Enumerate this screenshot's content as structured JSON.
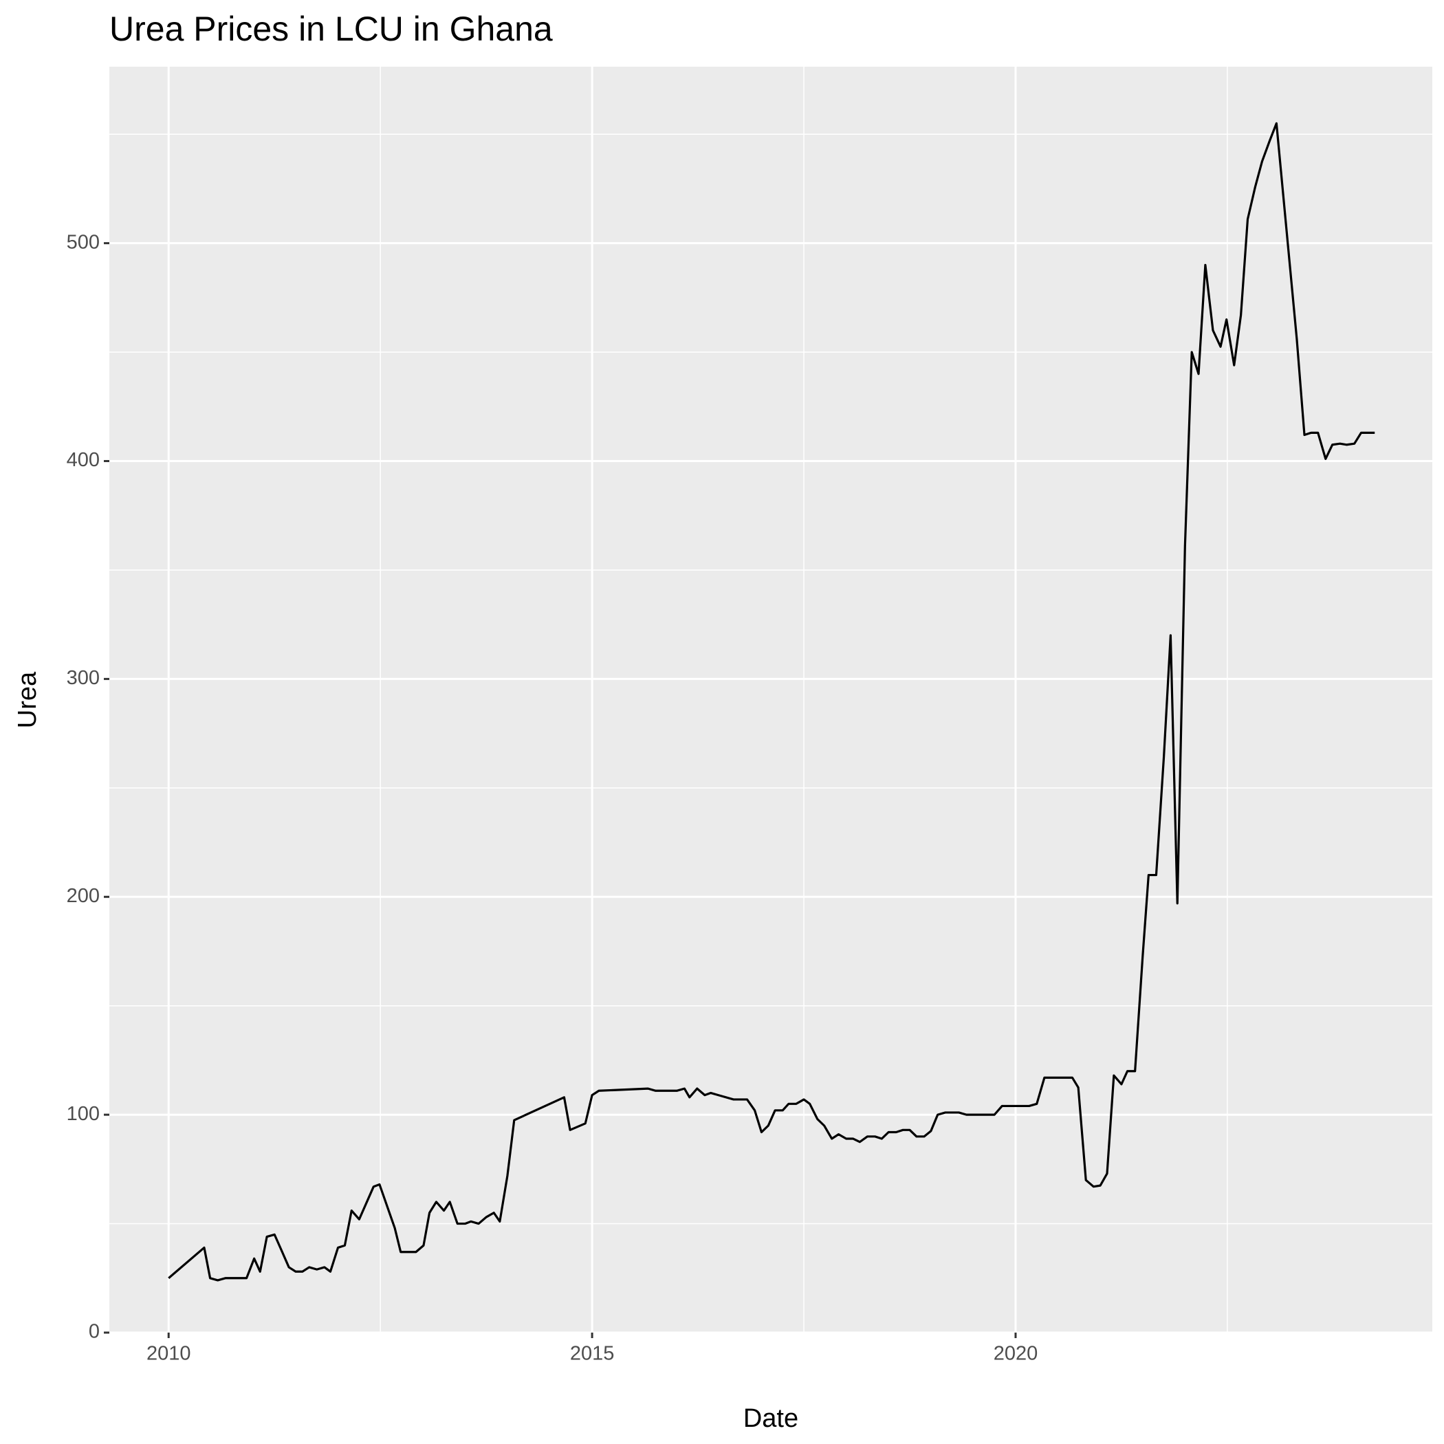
{
  "chart_data": {
    "type": "line",
    "title": "Urea Prices in LCU in Ghana",
    "x_label": "Date",
    "y_label": "Urea",
    "x": [
      2010.0,
      2010.42,
      2010.49,
      2010.58,
      2010.67,
      2010.92,
      2011.01,
      2011.08,
      2011.16,
      2011.25,
      2011.33,
      2011.42,
      2011.5,
      2011.58,
      2011.66,
      2011.75,
      2011.84,
      2011.91,
      2012.0,
      2012.08,
      2012.16,
      2012.25,
      2012.42,
      2012.49,
      2012.67,
      2012.74,
      2012.92,
      2013.01,
      2013.08,
      2013.16,
      2013.25,
      2013.32,
      2013.41,
      2013.5,
      2013.57,
      2013.66,
      2013.75,
      2013.84,
      2013.91,
      2014.0,
      2014.08,
      2014.67,
      2014.74,
      2014.92,
      2015.0,
      2015.08,
      2015.66,
      2015.75,
      2015.83,
      2015.91,
      2016.0,
      2016.09,
      2016.15,
      2016.24,
      2016.33,
      2016.4,
      2016.49,
      2016.67,
      2016.83,
      2016.92,
      2017.0,
      2017.08,
      2017.16,
      2017.25,
      2017.32,
      2017.41,
      2017.5,
      2017.57,
      2017.66,
      2017.74,
      2017.83,
      2017.91,
      2018.0,
      2018.08,
      2018.16,
      2018.25,
      2018.34,
      2018.42,
      2018.5,
      2018.59,
      2018.67,
      2018.75,
      2018.83,
      2018.92,
      2019.0,
      2019.08,
      2019.17,
      2019.33,
      2019.42,
      2019.75,
      2019.84,
      2020.0,
      2020.16,
      2020.25,
      2020.34,
      2020.67,
      2020.74,
      2020.83,
      2020.92,
      2021.0,
      2021.08,
      2021.16,
      2021.25,
      2021.32,
      2021.41,
      2021.5,
      2021.57,
      2021.66,
      2021.75,
      2021.83,
      2021.91,
      2022.0,
      2022.08,
      2022.16,
      2022.24,
      2022.33,
      2022.42,
      2022.49,
      2022.58,
      2022.66,
      2022.74,
      2022.83,
      2022.91,
      2023.0,
      2023.08,
      2023.32,
      2023.41,
      2023.49,
      2023.57,
      2023.66,
      2023.74,
      2023.83,
      2023.91,
      2024.0,
      2024.08,
      2024.24
    ],
    "series": [
      {
        "name": "Urea",
        "color": "#000000",
        "values": [
          25,
          39,
          25,
          24,
          25,
          25,
          34,
          28,
          44,
          45,
          38,
          30,
          28,
          28,
          30,
          29,
          30,
          28,
          39,
          40,
          56,
          52,
          67,
          68,
          48,
          37,
          37,
          40,
          55,
          60,
          56,
          60,
          50,
          50,
          51,
          50,
          53,
          55,
          51,
          72,
          97.5,
          108,
          93,
          96,
          109,
          111,
          112,
          111,
          111,
          111,
          111,
          112,
          108,
          112,
          109,
          110,
          109,
          107,
          107,
          102,
          92,
          95,
          102,
          102,
          105,
          105,
          107,
          105,
          98,
          95,
          89,
          91,
          89,
          89,
          87.5,
          90,
          90,
          89,
          92,
          92,
          93,
          93,
          90,
          90,
          92.5,
          100,
          101,
          101,
          100,
          100,
          104,
          104,
          104,
          105,
          117,
          117,
          112.5,
          70,
          67,
          67.5,
          73,
          118,
          114,
          120,
          120,
          172.5,
          210,
          210,
          264,
          320,
          197,
          361,
          450,
          440,
          490,
          460,
          452.5,
          465,
          444,
          467,
          511,
          526,
          537.5,
          547,
          555,
          456,
          412,
          413,
          413,
          401,
          407.5,
          408,
          407.5,
          408,
          413,
          413
        ]
      }
    ],
    "xlim": [
      2009.3,
      2024.92
    ],
    "xticks": [
      2010,
      2015,
      2020
    ],
    "ylim": [
      0,
      581
    ],
    "yticks": [
      0,
      100,
      200,
      300,
      400,
      500
    ],
    "grid": true
  }
}
